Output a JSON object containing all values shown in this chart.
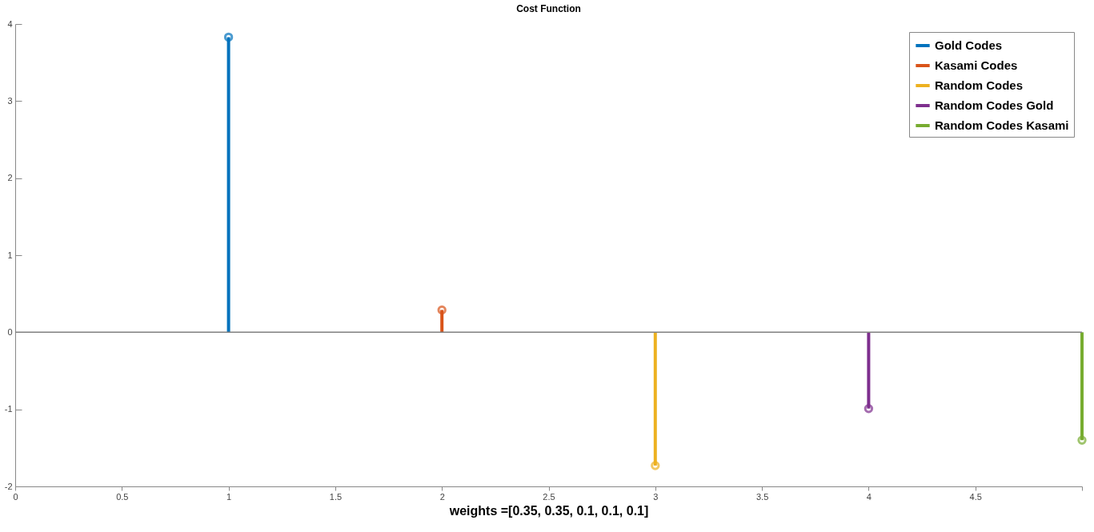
{
  "chart_data": {
    "type": "lollipop",
    "title": "Cost Function",
    "xlabel": "weights =[0.35, 0.35, 0.1, 0.1, 0.1]",
    "xlim": [
      0,
      5
    ],
    "xticks": [
      0,
      0.5,
      1,
      1.5,
      2,
      2.5,
      3,
      3.5,
      4,
      4.5,
      {
        "value": 5,
        "label": null
      }
    ],
    "ylim": [
      -2,
      4
    ],
    "yticks": [
      -2,
      -1,
      0,
      1,
      2,
      3,
      4
    ],
    "series": [
      {
        "name": "Gold Codes",
        "color": "#0072bd",
        "x": [
          1
        ],
        "values": [
          3.83
        ]
      },
      {
        "name": "Kasami Codes",
        "color": "#d95319",
        "x": [
          2
        ],
        "values": [
          0.29
        ]
      },
      {
        "name": "Random Codes",
        "color": "#edb120",
        "x": [
          3
        ],
        "values": [
          -1.73
        ]
      },
      {
        "name": "Random Codes Gold",
        "color": "#7e2f8e",
        "x": [
          4
        ],
        "values": [
          -0.99
        ]
      },
      {
        "name": "Random Codes Kasami",
        "color": "#77ac30",
        "x": [
          5
        ],
        "values": [
          -1.4
        ]
      }
    ],
    "ref_lines": [
      {
        "axis": "y",
        "value": 0,
        "color": "#808080"
      }
    ],
    "legend": "top right",
    "marker": "circle",
    "grid": false
  }
}
